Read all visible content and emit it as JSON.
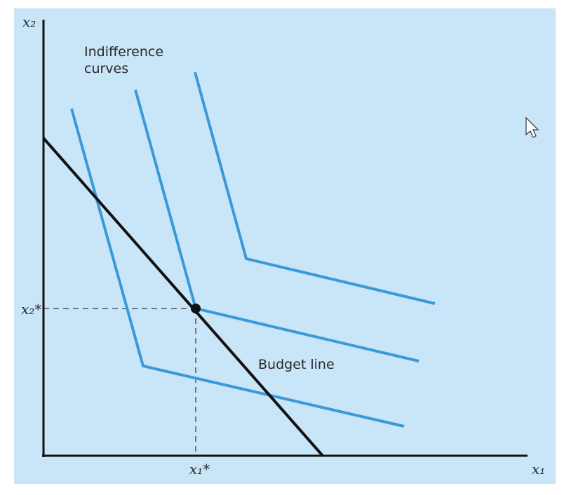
{
  "axes": {
    "y_label": "x₂",
    "x_label": "x₁",
    "x_star": "x₁*",
    "y_star": "x₂*"
  },
  "annotations": {
    "indifference_curves": [
      "Indifference",
      "curves"
    ],
    "budget_line": "Budget line"
  }
}
